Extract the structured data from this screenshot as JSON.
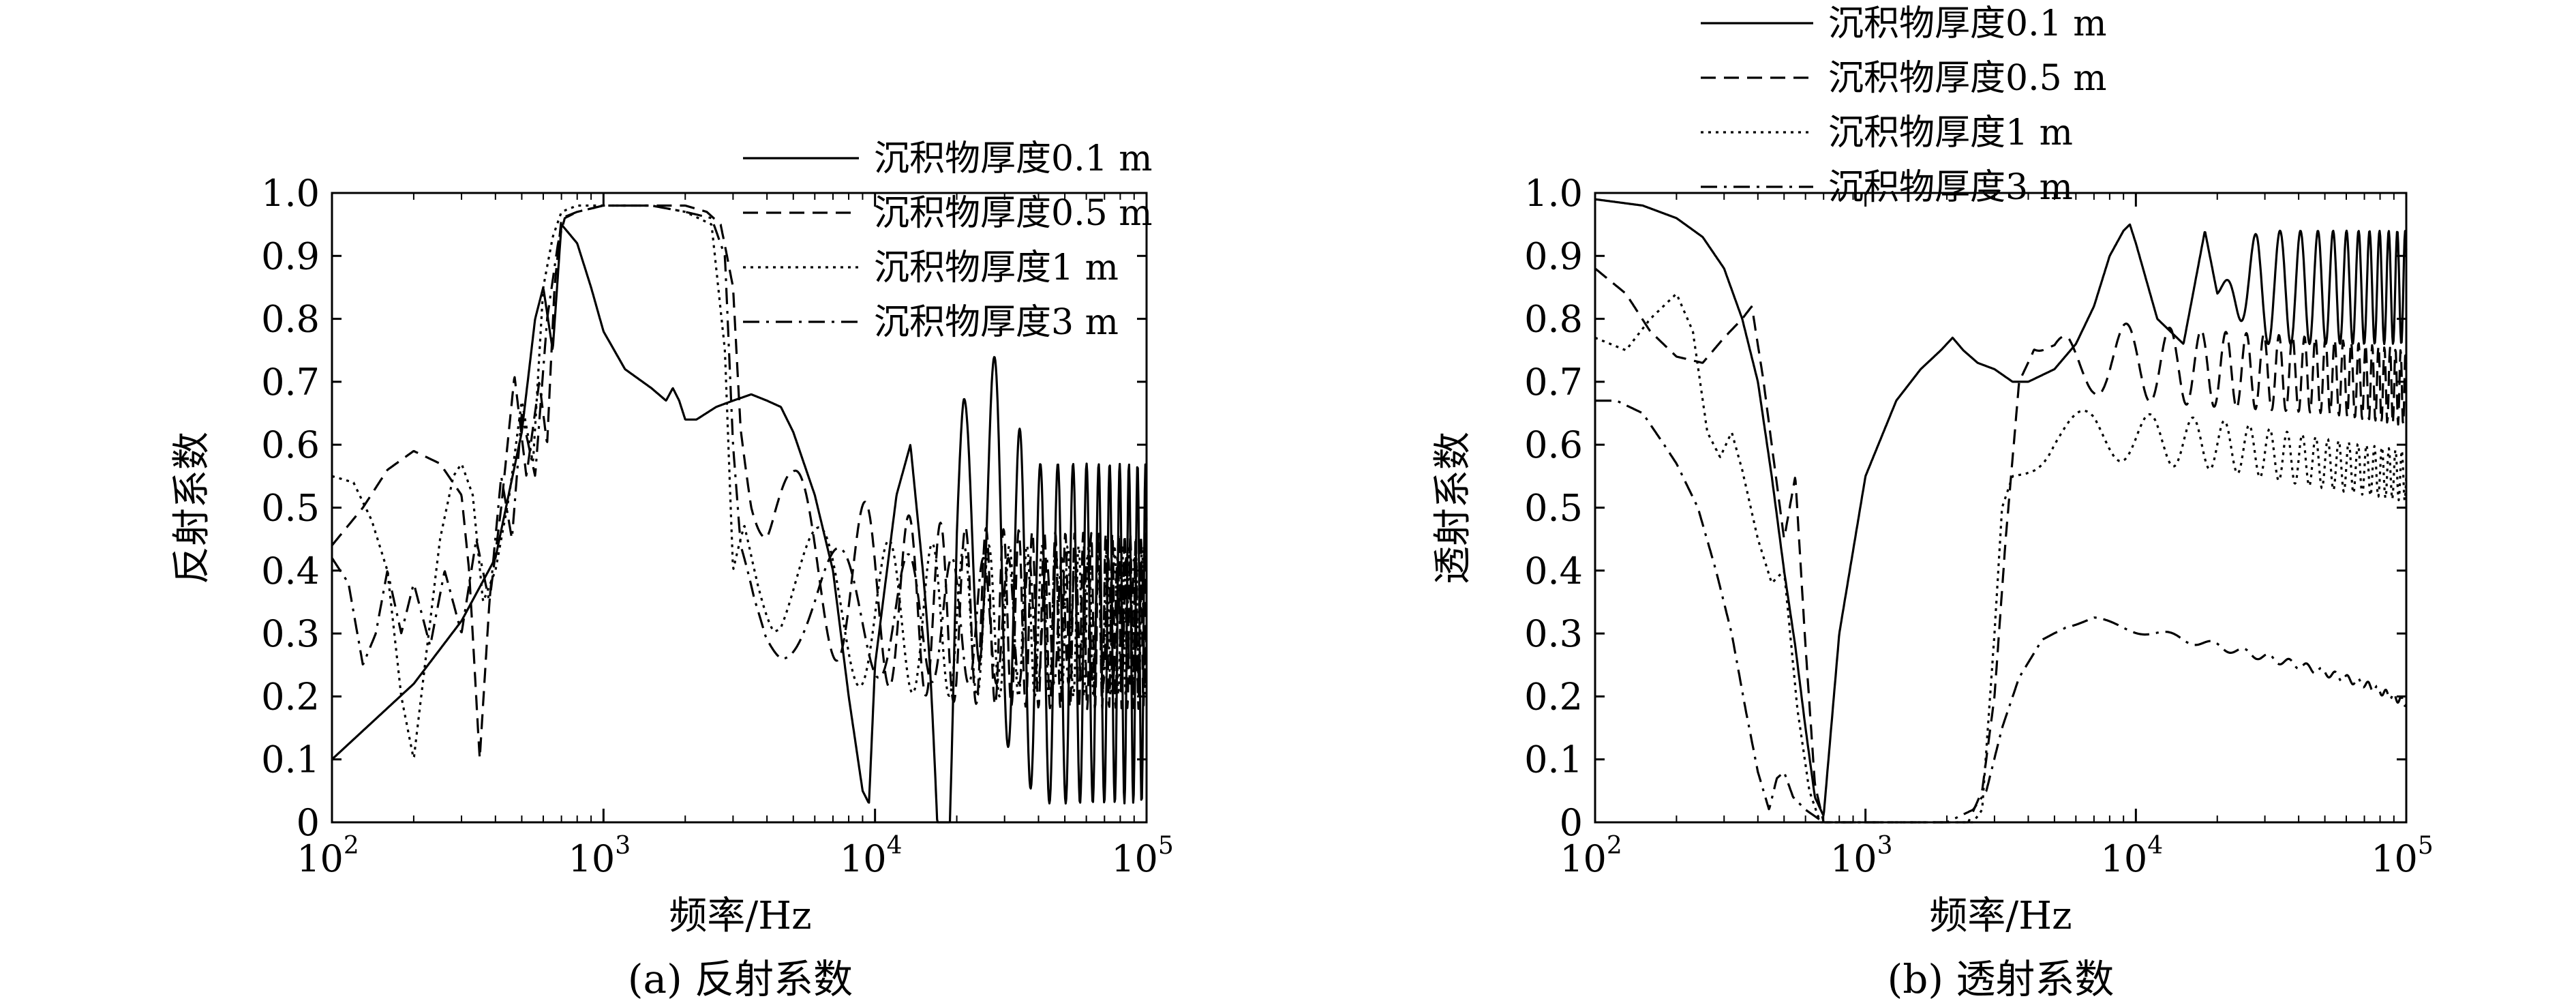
{
  "chart_data": [
    {
      "type": "line",
      "panel_caption": "(a) 反射系数",
      "xlabel": "频率/Hz",
      "ylabel": "反射系数",
      "xscale": "log",
      "xlim": [
        100,
        100000
      ],
      "ylim": [
        0,
        1.0
      ],
      "xtick_labels": [
        {
          "base": "10",
          "exp": "2"
        },
        {
          "base": "10",
          "exp": "3"
        },
        {
          "base": "10",
          "exp": "4"
        },
        {
          "base": "10",
          "exp": "5"
        }
      ],
      "yticks": [
        "0",
        "0.1",
        "0.2",
        "0.3",
        "0.4",
        "0.5",
        "0.6",
        "0.7",
        "0.8",
        "0.9",
        "1.0"
      ],
      "legend_position": "top-right, outside plot",
      "series": [
        {
          "name": "沉积物厚度0.1 m",
          "style": "solid",
          "x": [
            100,
            200,
            300,
            400,
            500,
            560,
            600,
            650,
            700,
            800,
            900,
            1000,
            1200,
            1500,
            1700,
            1800,
            1900,
            2000,
            2200,
            2600,
            3000,
            3500,
            4000,
            4500,
            5000,
            6000,
            7000,
            8000,
            9000,
            9500,
            10000,
            12000,
            13500,
            15000,
            17000,
            18500,
            20000,
            25000,
            30000,
            40000,
            60000,
            100000
          ],
          "y": [
            0.1,
            0.22,
            0.32,
            0.42,
            0.62,
            0.8,
            0.85,
            0.75,
            0.95,
            0.92,
            0.85,
            0.78,
            0.72,
            0.69,
            0.67,
            0.69,
            0.67,
            0.64,
            0.64,
            0.66,
            0.67,
            0.68,
            0.67,
            0.66,
            0.62,
            0.52,
            0.4,
            0.2,
            0.05,
            0.03,
            0.25,
            0.52,
            0.6,
            0.4,
            0.05,
            0.02,
            0.35,
            0.55,
            0.4,
            0.3,
            0.3,
            0.3
          ],
          "osc_from": 15000,
          "osc_amp": 0.27
        },
        {
          "name": "沉积物厚度0.5 m",
          "style": "dashed",
          "x": [
            100,
            130,
            160,
            200,
            250,
            300,
            320,
            350,
            380,
            420,
            470,
            520,
            580,
            620,
            660,
            700,
            800,
            1000,
            1500,
            2000,
            2400,
            2700,
            2850,
            3000,
            3200,
            3500,
            4000,
            5000,
            7000,
            10000,
            20000,
            50000,
            100000
          ],
          "y": [
            0.44,
            0.5,
            0.56,
            0.59,
            0.57,
            0.52,
            0.4,
            0.1,
            0.35,
            0.5,
            0.71,
            0.55,
            0.7,
            0.6,
            0.85,
            0.96,
            0.97,
            0.98,
            0.98,
            0.98,
            0.97,
            0.95,
            0.9,
            0.85,
            0.65,
            0.55,
            0.47,
            0.42,
            0.4,
            0.36,
            0.33,
            0.32,
            0.32
          ],
          "osc_from": 3000,
          "osc_amp": 0.14
        },
        {
          "name": "沉积物厚度1 m",
          "style": "dotted",
          "x": [
            100,
            120,
            140,
            160,
            180,
            200,
            220,
            250,
            280,
            300,
            330,
            360,
            400,
            450,
            500,
            550,
            600,
            650,
            700,
            800,
            1000,
            1500,
            2000,
            2500,
            2800,
            3000,
            3300,
            3700,
            4500,
            6000,
            8000,
            10000,
            20000,
            50000,
            100000
          ],
          "y": [
            0.55,
            0.54,
            0.48,
            0.4,
            0.2,
            0.1,
            0.25,
            0.45,
            0.55,
            0.57,
            0.52,
            0.35,
            0.4,
            0.52,
            0.67,
            0.57,
            0.85,
            0.93,
            0.97,
            0.98,
            0.98,
            0.98,
            0.97,
            0.95,
            0.75,
            0.4,
            0.5,
            0.45,
            0.38,
            0.35,
            0.34,
            0.33,
            0.32,
            0.32,
            0.32
          ],
          "osc_from": 3000,
          "osc_amp": 0.12
        },
        {
          "name": "沉积物厚度3 m",
          "style": "dashdot",
          "x": [
            100,
            115,
            130,
            145,
            160,
            180,
            200,
            230,
            260,
            300,
            340,
            380,
            420,
            460,
            500,
            560,
            620,
            680,
            720,
            800,
            1000,
            1500,
            2000,
            2500,
            2800,
            3000,
            3200,
            3600,
            4500,
            6000,
            10000,
            20000,
            50000,
            100000
          ],
          "y": [
            0.42,
            0.38,
            0.25,
            0.3,
            0.4,
            0.3,
            0.38,
            0.28,
            0.4,
            0.3,
            0.45,
            0.35,
            0.55,
            0.45,
            0.65,
            0.55,
            0.8,
            0.92,
            0.96,
            0.97,
            0.98,
            0.98,
            0.97,
            0.96,
            0.9,
            0.6,
            0.45,
            0.4,
            0.36,
            0.34,
            0.33,
            0.32,
            0.32,
            0.32
          ],
          "osc_from": 2800,
          "osc_amp": 0.1
        }
      ]
    },
    {
      "type": "line",
      "panel_caption": "(b) 透射系数",
      "xlabel": "频率/Hz",
      "ylabel": "透射系数",
      "xscale": "log",
      "xlim": [
        100,
        100000
      ],
      "ylim": [
        0,
        1.0
      ],
      "xtick_labels": [
        {
          "base": "10",
          "exp": "2"
        },
        {
          "base": "10",
          "exp": "3"
        },
        {
          "base": "10",
          "exp": "4"
        },
        {
          "base": "10",
          "exp": "5"
        }
      ],
      "yticks": [
        "0",
        "0.1",
        "0.2",
        "0.3",
        "0.4",
        "0.5",
        "0.6",
        "0.7",
        "0.8",
        "0.9",
        "1.0"
      ],
      "legend_position": "top-right, outside plot",
      "series": [
        {
          "name": "沉积物厚度0.1 m",
          "style": "solid",
          "x": [
            100,
            150,
            200,
            250,
            300,
            350,
            400,
            450,
            500,
            550,
            600,
            650,
            700,
            800,
            1000,
            1300,
            1600,
            1900,
            2100,
            2300,
            2600,
            3000,
            3500,
            4000,
            5000,
            6000,
            7000,
            8000,
            9000,
            9500,
            10000,
            12000,
            15000,
            18000,
            20000,
            25000,
            30000,
            40000,
            60000,
            100000
          ],
          "y": [
            0.99,
            0.98,
            0.96,
            0.93,
            0.88,
            0.8,
            0.7,
            0.55,
            0.4,
            0.28,
            0.15,
            0.04,
            0.01,
            0.3,
            0.55,
            0.67,
            0.72,
            0.75,
            0.77,
            0.75,
            0.73,
            0.72,
            0.7,
            0.7,
            0.72,
            0.76,
            0.82,
            0.9,
            0.94,
            0.95,
            0.92,
            0.8,
            0.76,
            0.94,
            0.84,
            0.85,
            0.85,
            0.85,
            0.85,
            0.85
          ],
          "osc_from": 20000,
          "osc_amp": 0.09
        },
        {
          "name": "沉积物厚度0.5 m",
          "style": "dashed",
          "x": [
            100,
            130,
            160,
            200,
            250,
            300,
            350,
            380,
            420,
            450,
            500,
            550,
            600,
            650,
            700,
            1000,
            1500,
            2000,
            2400,
            2700,
            3000,
            3300,
            3700,
            4200,
            5000,
            7000,
            10000,
            20000,
            50000,
            100000
          ],
          "y": [
            0.88,
            0.84,
            0.78,
            0.74,
            0.73,
            0.77,
            0.8,
            0.82,
            0.7,
            0.6,
            0.45,
            0.55,
            0.28,
            0.06,
            0.0,
            0.0,
            0.0,
            0.0,
            0.0,
            0.05,
            0.2,
            0.45,
            0.7,
            0.75,
            0.72,
            0.74,
            0.73,
            0.72,
            0.71,
            0.69
          ],
          "osc_from": 4000,
          "osc_amp": 0.06
        },
        {
          "name": "沉积物厚度1 m",
          "style": "dotted",
          "x": [
            100,
            130,
            160,
            200,
            230,
            260,
            290,
            320,
            350,
            400,
            450,
            500,
            560,
            620,
            680,
            750,
            1000,
            1500,
            2000,
            2500,
            2700,
            3000,
            3200,
            3500,
            4000,
            5000,
            7000,
            10000,
            20000,
            50000,
            100000
          ],
          "y": [
            0.77,
            0.75,
            0.8,
            0.84,
            0.78,
            0.62,
            0.58,
            0.62,
            0.56,
            0.45,
            0.38,
            0.4,
            0.18,
            0.05,
            0.0,
            0.0,
            0.0,
            0.0,
            0.0,
            0.0,
            0.02,
            0.3,
            0.5,
            0.55,
            0.57,
            0.6,
            0.62,
            0.61,
            0.6,
            0.57,
            0.55
          ],
          "osc_from": 3500,
          "osc_amp": 0.04
        },
        {
          "name": "沉积物厚度3 m",
          "style": "dashdot",
          "x": [
            100,
            120,
            150,
            180,
            200,
            240,
            280,
            320,
            360,
            400,
            440,
            470,
            500,
            540,
            600,
            700,
            1000,
            1500,
            2000,
            2500,
            2800,
            3200,
            3700,
            4500,
            5500,
            7000,
            9000,
            12000,
            20000,
            40000,
            70000,
            100000
          ],
          "y": [
            0.67,
            0.67,
            0.65,
            0.6,
            0.57,
            0.5,
            0.4,
            0.3,
            0.18,
            0.08,
            0.02,
            0.07,
            0.08,
            0.04,
            0.02,
            0.0,
            0.0,
            0.0,
            0.0,
            0.02,
            0.05,
            0.15,
            0.23,
            0.29,
            0.31,
            0.32,
            0.31,
            0.3,
            0.28,
            0.25,
            0.22,
            0.19
          ],
          "osc_from": 5000,
          "osc_amp": 0.006
        }
      ]
    }
  ]
}
